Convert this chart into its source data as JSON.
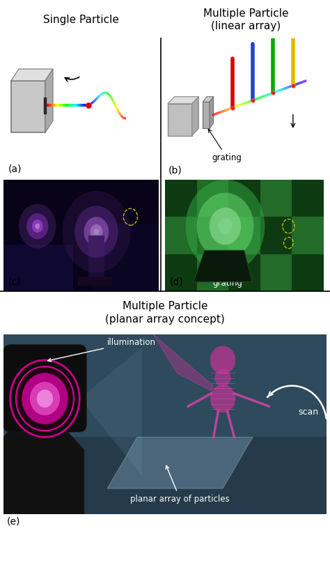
{
  "title_top_left": "Single Particle",
  "title_top_right": "Multiple Particle\n(linear array)",
  "title_bottom": "Multiple Particle\n(planar array concept)",
  "label_a": "(a)",
  "label_b": "(b)",
  "label_c": "(c)",
  "label_d": "(d)",
  "label_e": "(e)",
  "label_grating_b": "grating",
  "label_grating_d": "grating",
  "label_illumination": "illumination",
  "label_scan": "scan",
  "label_planar": "planar array of particles",
  "bg_color": "#ffffff",
  "panel_bg_c": "#080318",
  "panel_bg_d": "#1a5c20",
  "panel_bg_e": "#253a4a",
  "divider_color": "#000000",
  "title_fontsize": 11,
  "label_fontsize": 10,
  "annotation_fontsize": 8
}
